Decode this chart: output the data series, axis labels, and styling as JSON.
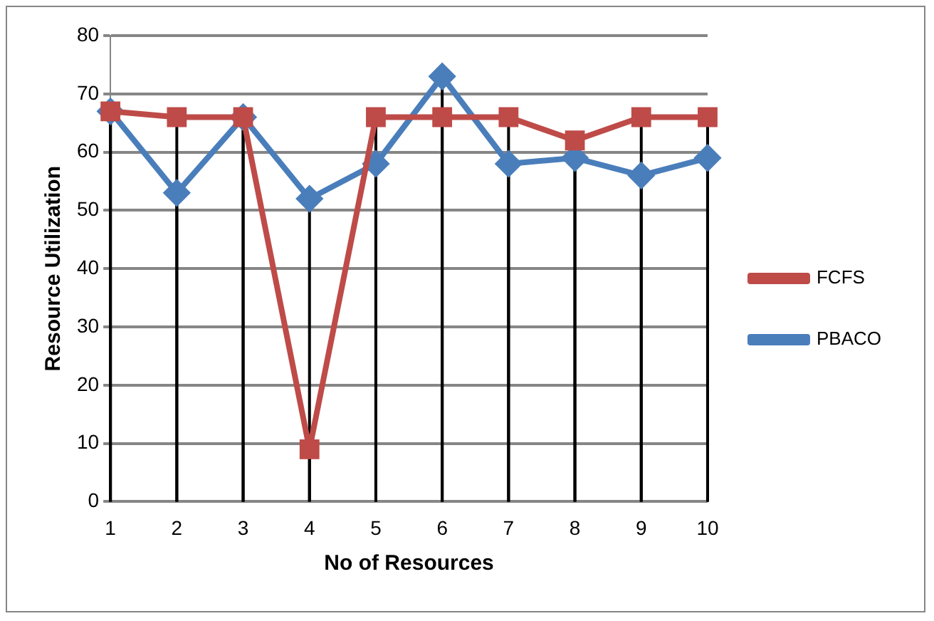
{
  "chart_data": {
    "type": "line",
    "xlabel": "No of Resources",
    "ylabel": "Resource Utilization",
    "categories": [
      "1",
      "2",
      "3",
      "4",
      "5",
      "6",
      "7",
      "8",
      "9",
      "10"
    ],
    "series": [
      {
        "name": "PBACO",
        "color": "#4a7ebb",
        "marker": "diamond",
        "values": [
          67,
          53,
          66,
          52,
          58,
          73,
          58,
          59,
          56,
          59
        ]
      },
      {
        "name": "FCFS",
        "color": "#be4b48",
        "marker": "square",
        "values": [
          67,
          66,
          66,
          9,
          66,
          66,
          66,
          62,
          66,
          66
        ]
      }
    ],
    "ylim": [
      0,
      80
    ],
    "yticks": [
      0,
      10,
      20,
      30,
      40,
      50,
      60,
      70,
      80
    ],
    "grid": true,
    "legend": "right"
  }
}
